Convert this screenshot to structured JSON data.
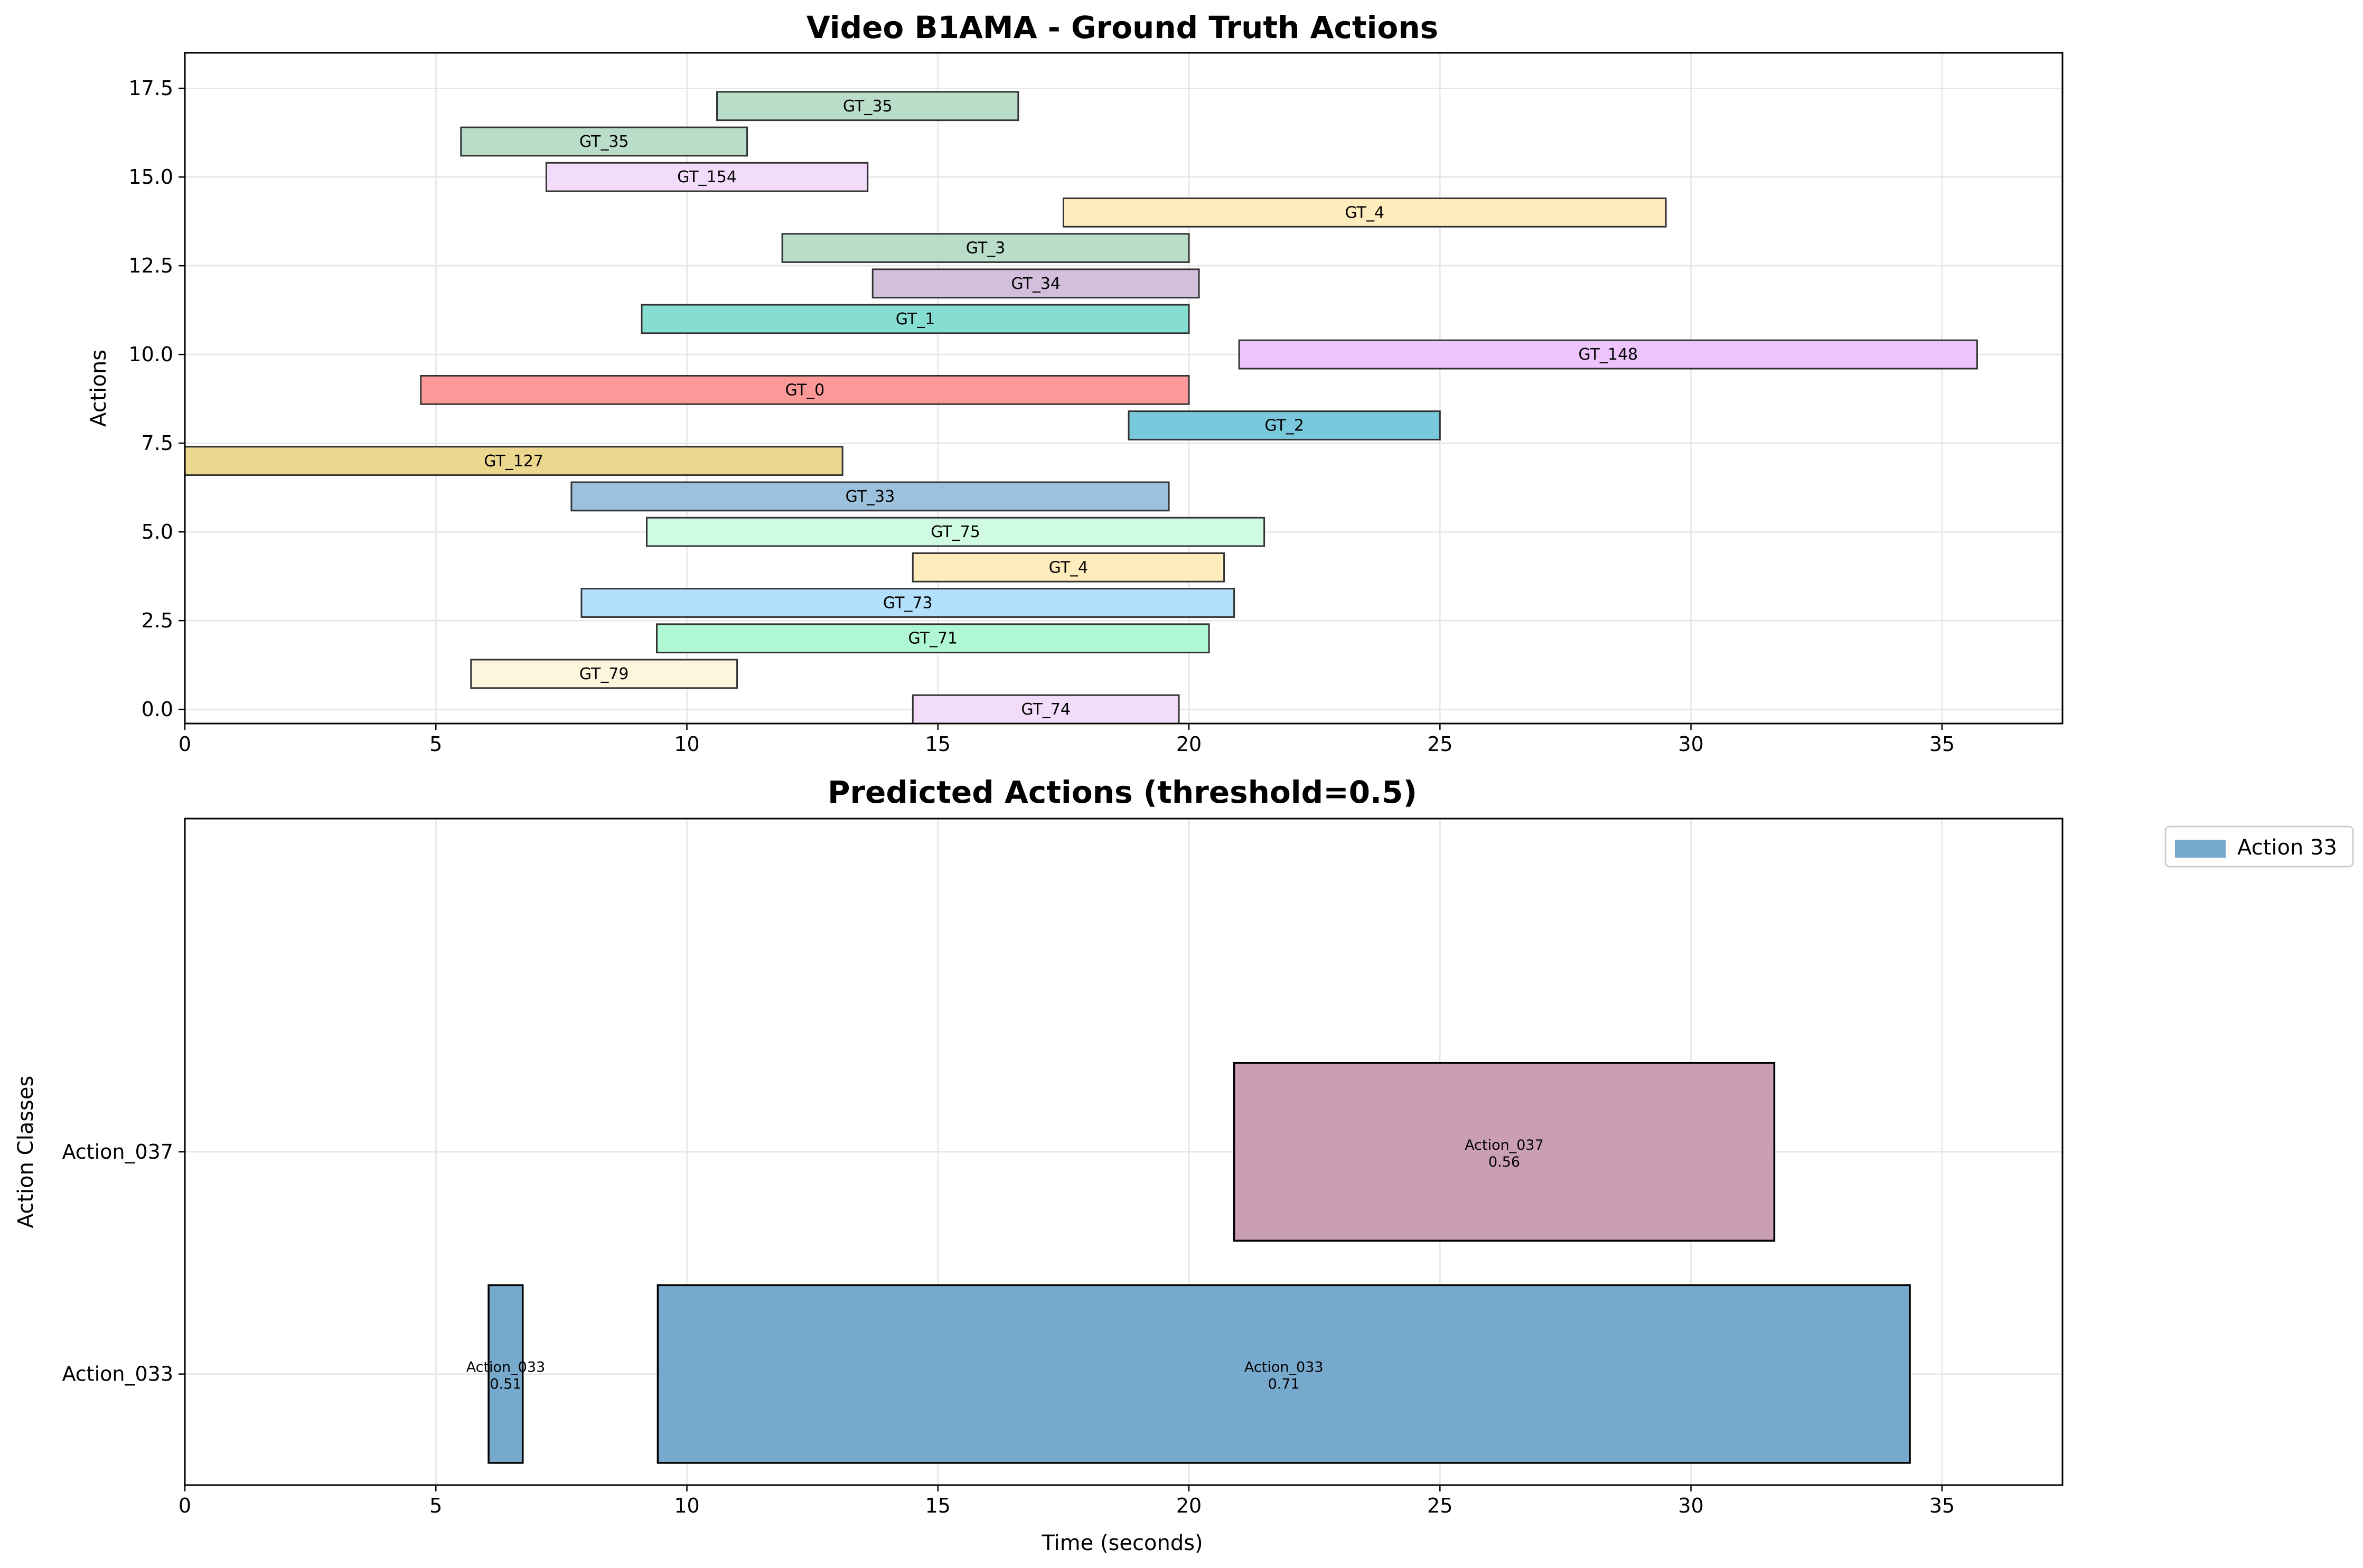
{
  "chart_data": [
    {
      "type": "bar",
      "orientation": "horizontal",
      "title": "Video B1AMA - Ground Truth Actions",
      "xlabel": "",
      "ylabel": "Actions",
      "xlim": [
        0,
        37.4
      ],
      "ylim": [
        -0.4,
        18.5
      ],
      "xticks": [
        0,
        5,
        10,
        15,
        20,
        25,
        30,
        35
      ],
      "yticks": [
        0.0,
        2.5,
        5.0,
        7.5,
        10.0,
        12.5,
        15.0,
        17.5
      ],
      "ytick_labels": [
        "0.0",
        "2.5",
        "5.0",
        "7.5",
        "10.0",
        "12.5",
        "15.0",
        "17.5"
      ],
      "grid": true,
      "bars": [
        {
          "label": "GT_74",
          "y": 0,
          "start": 14.5,
          "end": 19.8,
          "color": "#f2dcfa"
        },
        {
          "label": "GT_79",
          "y": 1,
          "start": 5.7,
          "end": 11.0,
          "color": "#fdf6dd"
        },
        {
          "label": "GT_71",
          "y": 2,
          "start": 9.4,
          "end": 20.4,
          "color": "#b0f7d3"
        },
        {
          "label": "GT_73",
          "y": 3,
          "start": 7.9,
          "end": 20.9,
          "color": "#b3e1fd"
        },
        {
          "label": "GT_4",
          "y": 4,
          "start": 14.5,
          "end": 20.7,
          "color": "#feecbc"
        },
        {
          "label": "GT_75",
          "y": 5,
          "start": 9.2,
          "end": 21.5,
          "color": "#d0fbe3"
        },
        {
          "label": "GT_33",
          "y": 6,
          "start": 7.7,
          "end": 19.6,
          "color": "#9cc1dd"
        },
        {
          "label": "GT_127",
          "y": 7,
          "start": 0.0,
          "end": 13.1,
          "color": "#ecd78f"
        },
        {
          "label": "GT_2",
          "y": 8,
          "start": 18.8,
          "end": 25.0,
          "color": "#79c8dc"
        },
        {
          "label": "GT_0",
          "y": 9,
          "start": 4.7,
          "end": 20.0,
          "color": "#fd9898"
        },
        {
          "label": "GT_148",
          "y": 10,
          "start": 21.0,
          "end": 35.7,
          "color": "#eec4fd"
        },
        {
          "label": "GT_1",
          "y": 11,
          "start": 9.1,
          "end": 20.0,
          "color": "#86ddd2"
        },
        {
          "label": "GT_34",
          "y": 12,
          "start": 13.7,
          "end": 20.2,
          "color": "#d3bedc"
        },
        {
          "label": "GT_3",
          "y": 13,
          "start": 11.9,
          "end": 20.0,
          "color": "#b9ddc8"
        },
        {
          "label": "GT_4",
          "y": 14,
          "start": 17.5,
          "end": 29.5,
          "color": "#feecbc"
        },
        {
          "label": "GT_154",
          "y": 15,
          "start": 7.2,
          "end": 13.6,
          "color": "#f2dcfa"
        },
        {
          "label": "GT_35",
          "y": 16,
          "start": 5.5,
          "end": 11.2,
          "color": "#b9ddc8"
        },
        {
          "label": "GT_35",
          "y": 17,
          "start": 10.6,
          "end": 16.6,
          "color": "#b9ddc8"
        }
      ]
    },
    {
      "type": "bar",
      "orientation": "horizontal",
      "title": "Predicted Actions (threshold=0.5)",
      "xlabel": "Time (seconds)",
      "ylabel": "Action Classes",
      "xlim": [
        0,
        37.4
      ],
      "ylim": [
        -0.5,
        2.5
      ],
      "xticks": [
        0,
        5,
        10,
        15,
        20,
        25,
        30,
        35
      ],
      "categories": [
        "Action_033",
        "Action_037"
      ],
      "grid": true,
      "legend": {
        "position": "outside-top-right",
        "entries": [
          {
            "name": "Action 33",
            "color": "#77a9cd"
          }
        ]
      },
      "bars": [
        {
          "category": "Action_033",
          "y": 0,
          "start": 6.05,
          "end": 6.73,
          "score": "0.51",
          "label": "Action_033",
          "color": "#77a9cd"
        },
        {
          "category": "Action_033",
          "y": 0,
          "start": 9.42,
          "end": 34.36,
          "score": "0.71",
          "label": "Action_033",
          "color": "#77a9cd"
        },
        {
          "category": "Action_037",
          "y": 1,
          "start": 20.9,
          "end": 31.66,
          "score": "0.56",
          "label": "Action_037",
          "color": "#cb9fb3"
        }
      ]
    }
  ]
}
